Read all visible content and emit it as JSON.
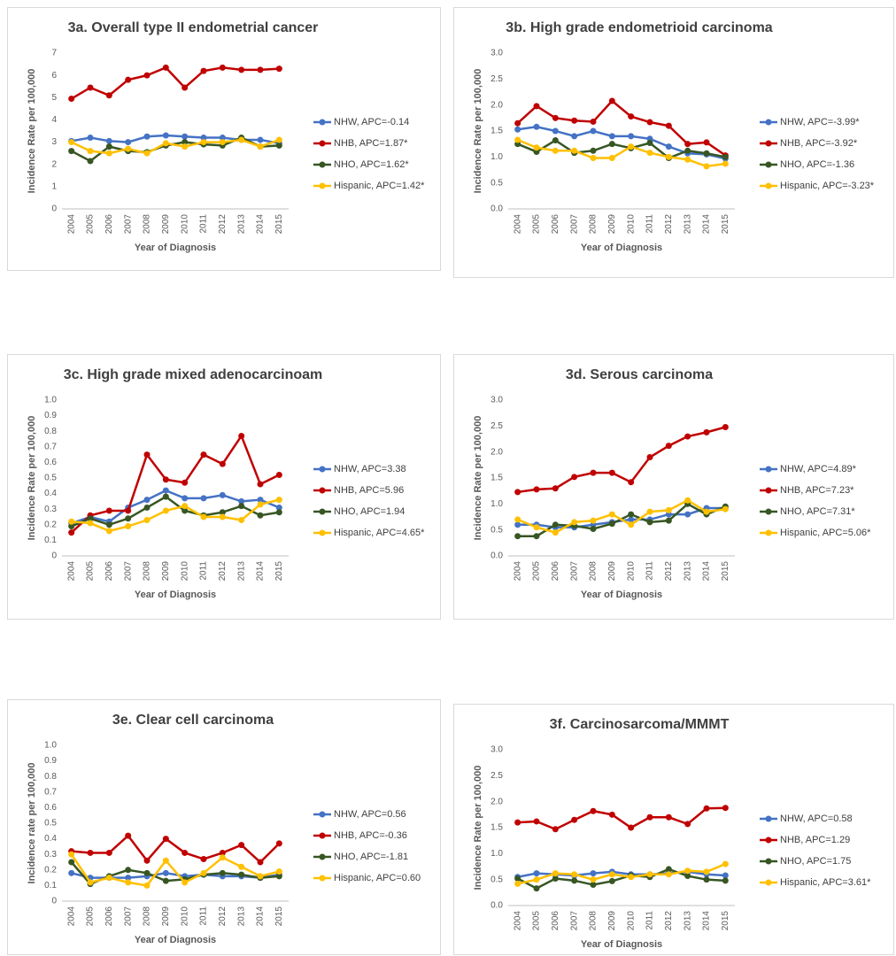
{
  "chart_data": [
    {
      "type": "line",
      "title": "3a. Overall type II endometrial cancer",
      "x_label": "Year of Diagnosis",
      "y_label": "Incidence Rate per 100,000",
      "categories": [
        "2004",
        "2005",
        "2006",
        "2007",
        "2008",
        "2009",
        "2010",
        "2011",
        "2012",
        "2013",
        "2014",
        "2015"
      ],
      "series": [
        {
          "name": "NHW, APC=-0.14",
          "color": "#4472c4",
          "values": [
            3.05,
            3.2,
            3.05,
            3.0,
            3.25,
            3.3,
            3.25,
            3.2,
            3.2,
            3.1,
            3.1,
            2.95
          ]
        },
        {
          "name": "NHB, APC=1.87*",
          "color": "#c00000",
          "values": [
            4.95,
            5.45,
            5.1,
            5.8,
            6.0,
            6.35,
            5.45,
            6.2,
            6.35,
            6.25,
            6.25,
            6.3
          ]
        },
        {
          "name": "NHO, APC=1.62*",
          "color": "#375623",
          "values": [
            2.6,
            2.15,
            2.8,
            2.6,
            2.55,
            2.85,
            3.0,
            2.9,
            2.85,
            3.2,
            2.8,
            2.85
          ]
        },
        {
          "name": "Hispanic, APC=1.42*",
          "color": "#ffc000",
          "values": [
            3.0,
            2.6,
            2.5,
            2.7,
            2.5,
            2.95,
            2.8,
            3.0,
            3.0,
            3.1,
            2.8,
            3.1
          ]
        }
      ],
      "ylim": [
        0,
        7
      ],
      "yticks": [
        0,
        1,
        2,
        3,
        4,
        5,
        6,
        7
      ],
      "grid": false
    },
    {
      "type": "line",
      "title": "3b. High grade endometrioid carcinoma",
      "x_label": "Year of Diagnosis",
      "y_label": "Incidence Rate per 100,000",
      "categories": [
        "2004",
        "2005",
        "2006",
        "2007",
        "2008",
        "2009",
        "2010",
        "2011",
        "2012",
        "2013",
        "2014",
        "2015"
      ],
      "series": [
        {
          "name": "NHW, APC=-3.99*",
          "color": "#4472c4",
          "values": [
            1.53,
            1.58,
            1.5,
            1.4,
            1.5,
            1.4,
            1.4,
            1.35,
            1.2,
            1.07,
            1.05,
            0.97
          ]
        },
        {
          "name": "NHB, APC=-3.92*",
          "color": "#c00000",
          "values": [
            1.65,
            1.98,
            1.75,
            1.7,
            1.68,
            2.08,
            1.78,
            1.67,
            1.6,
            1.25,
            1.28,
            1.03
          ]
        },
        {
          "name": "NHO, APC=-1.36",
          "color": "#375623",
          "values": [
            1.25,
            1.1,
            1.32,
            1.08,
            1.12,
            1.25,
            1.17,
            1.27,
            0.98,
            1.12,
            1.07,
            1.0
          ]
        },
        {
          "name": "Hispanic, APC=-3.23*",
          "color": "#ffc000",
          "values": [
            1.33,
            1.18,
            1.12,
            1.12,
            0.98,
            0.98,
            1.2,
            1.08,
            1.0,
            0.95,
            0.82,
            0.87
          ]
        }
      ],
      "ylim": [
        0,
        3
      ],
      "yticks": [
        {
          "value": 0,
          "label": "0.0"
        },
        0.5,
        {
          "value": 1,
          "label": "1.0"
        },
        1.5,
        {
          "value": 2,
          "label": "2.0"
        },
        2.5,
        {
          "value": 3,
          "label": "3.0"
        }
      ],
      "grid": false
    },
    {
      "type": "line",
      "title": "3c. High grade mixed adenocarcinoam",
      "x_label": "Year of Diagnosis",
      "y_label": "Incidence Rate per 100,000",
      "categories": [
        "2004",
        "2005",
        "2006",
        "2007",
        "2008",
        "2009",
        "2010",
        "2011",
        "2012",
        "2013",
        "2014",
        "2015"
      ],
      "series": [
        {
          "name": "NHW, APC=3.38",
          "color": "#4472c4",
          "values": [
            0.21,
            0.25,
            0.22,
            0.31,
            0.36,
            0.42,
            0.37,
            0.37,
            0.39,
            0.35,
            0.36,
            0.31
          ]
        },
        {
          "name": "NHB, APC=5.96",
          "color": "#c00000",
          "values": [
            0.15,
            0.26,
            0.29,
            0.29,
            0.65,
            0.49,
            0.47,
            0.65,
            0.59,
            0.77,
            0.46,
            0.52
          ]
        },
        {
          "name": "NHO, APC=1.94",
          "color": "#375623",
          "values": [
            0.19,
            0.24,
            0.2,
            0.24,
            0.31,
            0.38,
            0.29,
            0.26,
            0.28,
            0.32,
            0.26,
            0.28
          ]
        },
        {
          "name": "Hispanic, APC=4.65*",
          "color": "#ffc000",
          "values": [
            0.22,
            0.21,
            0.16,
            0.19,
            0.23,
            0.29,
            0.32,
            0.25,
            0.25,
            0.23,
            0.33,
            0.36
          ]
        }
      ],
      "ylim": [
        0,
        1
      ],
      "yticks": [
        0,
        0.1,
        0.2,
        0.3,
        0.4,
        0.5,
        0.6,
        0.7,
        0.8,
        0.9,
        {
          "value": 1,
          "label": "1.0"
        }
      ],
      "grid": false
    },
    {
      "type": "line",
      "title": "3d. Serous carcinoma",
      "x_label": "Year of Diagnosis",
      "y_label": "Incidence Rate per 100,000",
      "categories": [
        "2004",
        "2005",
        "2006",
        "2007",
        "2008",
        "2009",
        "2010",
        "2011",
        "2012",
        "2013",
        "2014",
        "2015"
      ],
      "series": [
        {
          "name": "NHW, APC=4.89*",
          "color": "#4472c4",
          "values": [
            0.6,
            0.6,
            0.55,
            0.55,
            0.6,
            0.65,
            0.7,
            0.7,
            0.8,
            0.8,
            0.92,
            0.92
          ]
        },
        {
          "name": "NHB, APC=7.23*",
          "color": "#c00000",
          "values": [
            1.23,
            1.28,
            1.3,
            1.52,
            1.6,
            1.6,
            1.42,
            1.9,
            2.12,
            2.3,
            2.38,
            2.48
          ]
        },
        {
          "name": "NHO, APC=7.31*",
          "color": "#375623",
          "values": [
            0.38,
            0.38,
            0.6,
            0.58,
            0.52,
            0.62,
            0.8,
            0.65,
            0.68,
            1.0,
            0.8,
            0.95
          ]
        },
        {
          "name": "Hispanic, APC=5.06*",
          "color": "#ffc000",
          "values": [
            0.7,
            0.55,
            0.45,
            0.65,
            0.68,
            0.8,
            0.6,
            0.85,
            0.88,
            1.07,
            0.85,
            0.9
          ]
        }
      ],
      "ylim": [
        0,
        3
      ],
      "yticks": [
        {
          "value": 0,
          "label": "0.0"
        },
        0.5,
        {
          "value": 1,
          "label": "1.0"
        },
        1.5,
        {
          "value": 2,
          "label": "2.0"
        },
        2.5,
        {
          "value": 3,
          "label": "3.0"
        }
      ],
      "grid": false
    },
    {
      "type": "line",
      "title": "3e. Clear cell carcinoma",
      "x_label": "Year of Diagnosis",
      "y_label": "Incidence rate per 100,000",
      "categories": [
        "2004",
        "2005",
        "2006",
        "2007",
        "2008",
        "2009",
        "2010",
        "2011",
        "2012",
        "2013",
        "2014",
        "2015"
      ],
      "series": [
        {
          "name": "NHW, APC=0.56",
          "color": "#4472c4",
          "values": [
            0.18,
            0.15,
            0.15,
            0.15,
            0.16,
            0.18,
            0.16,
            0.17,
            0.16,
            0.16,
            0.15,
            0.17
          ]
        },
        {
          "name": "NHB, APC=-0.36",
          "color": "#c00000",
          "values": [
            0.32,
            0.31,
            0.31,
            0.42,
            0.26,
            0.4,
            0.31,
            0.27,
            0.31,
            0.36,
            0.25,
            0.37
          ]
        },
        {
          "name": "NHO, APC=-1.81",
          "color": "#375623",
          "values": [
            0.25,
            0.11,
            0.16,
            0.2,
            0.18,
            0.13,
            0.14,
            0.17,
            0.18,
            0.17,
            0.15,
            0.16
          ]
        },
        {
          "name": "Hispanic, APC=0.60",
          "color": "#ffc000",
          "values": [
            0.3,
            0.12,
            0.15,
            0.12,
            0.1,
            0.26,
            0.12,
            0.18,
            0.28,
            0.22,
            0.16,
            0.19
          ]
        }
      ],
      "ylim": [
        0,
        1
      ],
      "yticks": [
        0,
        0.1,
        0.2,
        0.3,
        0.4,
        0.5,
        0.6,
        0.7,
        0.8,
        0.9,
        {
          "value": 1,
          "label": "1.0"
        }
      ],
      "grid": false
    },
    {
      "type": "line",
      "title": "3f. Carcinosarcoma/MMMT",
      "x_label": "Year of Diagnosis",
      "y_label": "Incidence Rate per 100,000",
      "categories": [
        "2004",
        "2005",
        "2006",
        "2007",
        "2008",
        "2009",
        "2010",
        "2011",
        "2012",
        "2013",
        "2014",
        "2015"
      ],
      "series": [
        {
          "name": "NHW, APC=0.58",
          "color": "#4472c4",
          "values": [
            0.55,
            0.62,
            0.6,
            0.58,
            0.62,
            0.65,
            0.6,
            0.6,
            0.62,
            0.65,
            0.6,
            0.58
          ]
        },
        {
          "name": "NHB, APC=1.29",
          "color": "#c00000",
          "values": [
            1.6,
            1.62,
            1.47,
            1.65,
            1.82,
            1.75,
            1.5,
            1.7,
            1.7,
            1.57,
            1.87,
            1.88
          ]
        },
        {
          "name": "NHO, APC=1.75",
          "color": "#375623",
          "values": [
            0.52,
            0.33,
            0.52,
            0.48,
            0.4,
            0.47,
            0.58,
            0.55,
            0.7,
            0.57,
            0.5,
            0.48
          ]
        },
        {
          "name": "Hispanic, APC=3.61*",
          "color": "#ffc000",
          "values": [
            0.42,
            0.5,
            0.62,
            0.6,
            0.5,
            0.6,
            0.55,
            0.6,
            0.6,
            0.67,
            0.65,
            0.8
          ]
        }
      ],
      "ylim": [
        0,
        3
      ],
      "yticks": [
        {
          "value": 0,
          "label": "0.0"
        },
        0.5,
        {
          "value": 1,
          "label": "1.0"
        },
        1.5,
        {
          "value": 2,
          "label": "2.0"
        },
        2.5,
        {
          "value": 3,
          "label": "3.0"
        }
      ],
      "grid": false
    }
  ]
}
